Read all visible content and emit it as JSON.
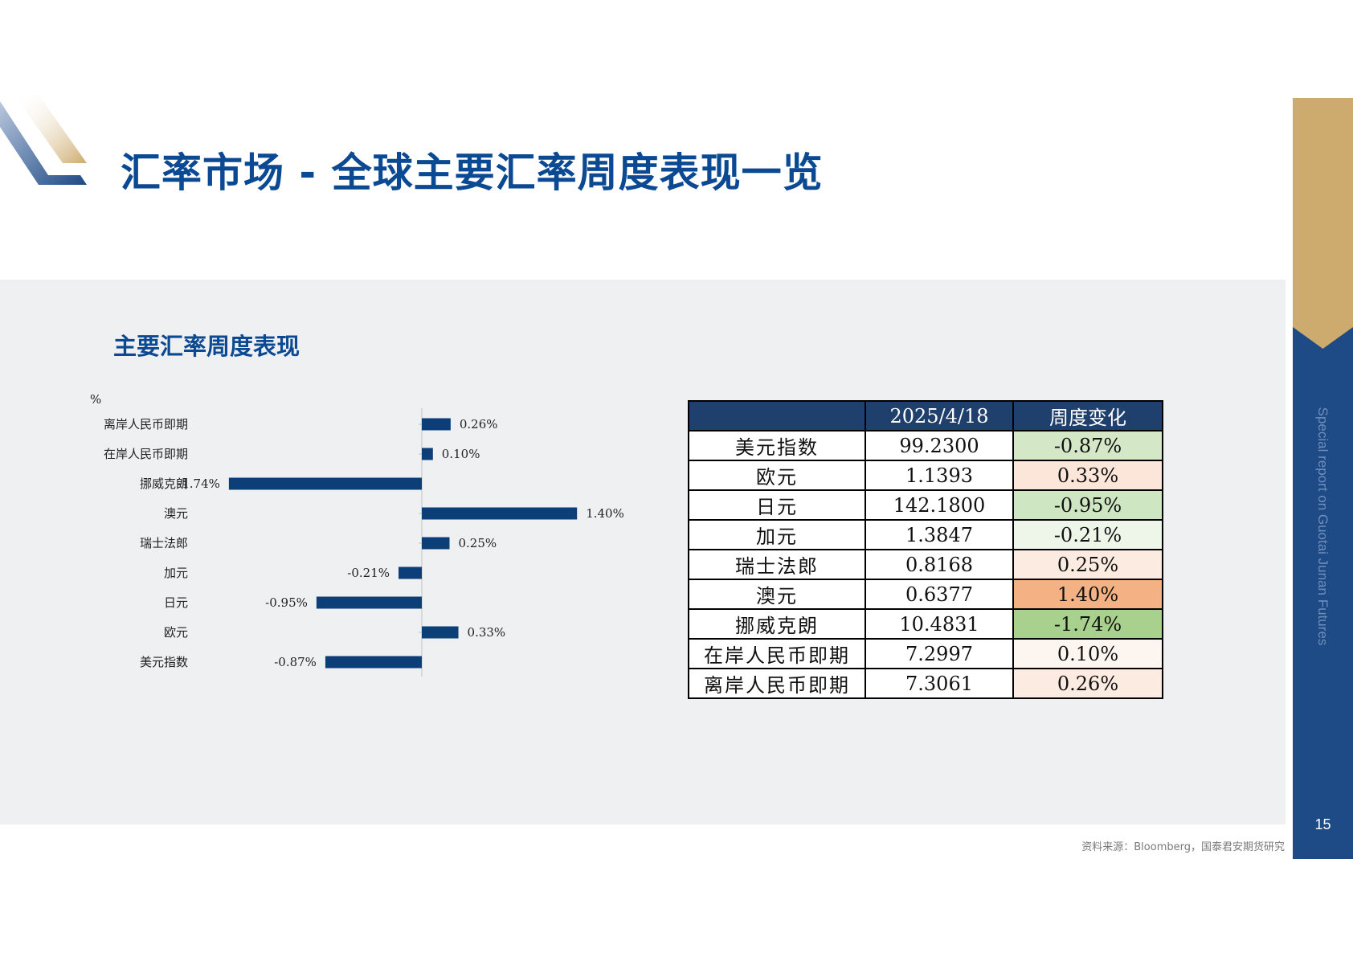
{
  "page": {
    "title": "汇率市场 - 全球主要汇率周度表现一览",
    "side_text": "Special report on Guotai Junan Futures",
    "page_number": "15",
    "source": "资料来源：Bloomberg，国泰君安期货研究"
  },
  "colors": {
    "brand_blue": "#0b4a93",
    "bar": "#0c3e78",
    "header": "#1f3f6c",
    "band": "#1e4a86",
    "gold": "#cdaa6d"
  },
  "chart_data": {
    "type": "bar",
    "orientation": "horizontal",
    "title": "主要汇率周度表现",
    "unit": "%",
    "categories": [
      "离岸人民币即期",
      "在岸人民币即期",
      "挪威克朗",
      "澳元",
      "瑞士法郎",
      "加元",
      "日元",
      "欧元",
      "美元指数"
    ],
    "values": [
      0.26,
      0.1,
      -1.74,
      1.4,
      0.25,
      -0.21,
      -0.95,
      0.33,
      -0.87
    ],
    "value_labels": [
      "0.26%",
      "0.10%",
      "-1.74%",
      "1.40%",
      "0.25%",
      "-0.21%",
      "-0.95%",
      "0.33%",
      "-0.87%"
    ],
    "xlim": [
      -1.74,
      1.74
    ]
  },
  "table": {
    "headers": [
      "",
      "2025/4/18",
      "周度变化"
    ],
    "rows": [
      {
        "name": "美元指数",
        "price": "99.2300",
        "change": "-0.87%",
        "color": "#d4e8c8"
      },
      {
        "name": "欧元",
        "price": "1.1393",
        "change": "0.33%",
        "color": "#fbe6d9"
      },
      {
        "name": "日元",
        "price": "142.1800",
        "change": "-0.95%",
        "color": "#cfe6c2"
      },
      {
        "name": "加元",
        "price": "1.3847",
        "change": "-0.21%",
        "color": "#eef6e9"
      },
      {
        "name": "瑞士法郎",
        "price": "0.8168",
        "change": "0.25%",
        "color": "#fcebe0"
      },
      {
        "name": "澳元",
        "price": "0.6377",
        "change": "1.40%",
        "color": "#f4b183"
      },
      {
        "name": "挪威克朗",
        "price": "10.4831",
        "change": "-1.74%",
        "color": "#a9d18e"
      },
      {
        "name": "在岸人民币即期",
        "price": "7.2997",
        "change": "0.10%",
        "color": "#fdf6f0"
      },
      {
        "name": "离岸人民币即期",
        "price": "7.3061",
        "change": "0.26%",
        "color": "#fcebe0"
      }
    ]
  }
}
